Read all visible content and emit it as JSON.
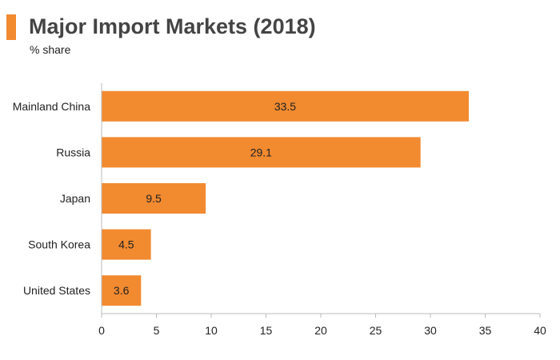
{
  "header": {
    "title": "Major Import Markets (2018)",
    "subtitle": "% share",
    "accent_color": "#f28a30"
  },
  "chart_data": {
    "type": "bar",
    "orientation": "horizontal",
    "title": "Major Import Markets (2018)",
    "subtitle": "% share",
    "categories": [
      "Mainland China",
      "Russia",
      "Japan",
      "South Korea",
      "United States"
    ],
    "values": [
      33.5,
      29.1,
      9.5,
      4.5,
      3.6
    ],
    "data_labels": [
      "33.5",
      "29.1",
      "9.5",
      "4.5",
      "3.6"
    ],
    "xlim": [
      0,
      40
    ],
    "x_ticks": [
      0,
      5,
      10,
      15,
      20,
      25,
      30,
      35,
      40
    ],
    "bar_color": "#f28a30",
    "grid": false,
    "legend": "none"
  }
}
